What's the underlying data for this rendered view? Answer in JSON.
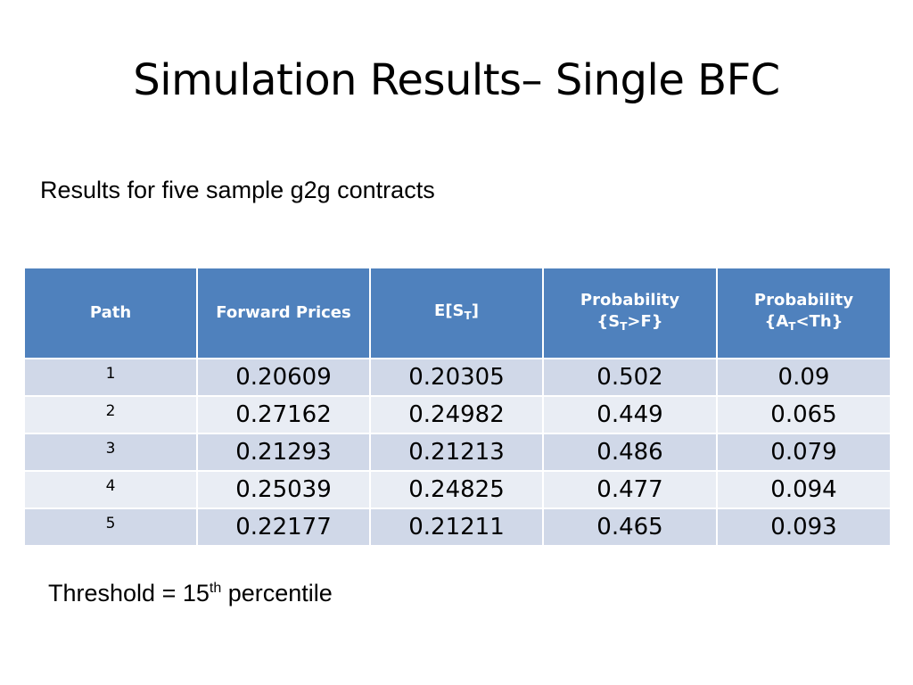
{
  "slide": {
    "title": "Simulation Results– Single BFC",
    "subtitle": "Results for five sample g2g contracts"
  },
  "table": {
    "headers": {
      "path": "Path",
      "forward_prices": "Forward Prices",
      "expectation": {
        "prefix": "E[S",
        "sub": "T",
        "suffix": "]"
      },
      "prob_s": {
        "line1": "Probability",
        "prefix": "{S",
        "sub": "T",
        "suffix": ">F}"
      },
      "prob_a": {
        "line1": "Probability",
        "prefix": "{A",
        "sub": "T",
        "suffix": "<Th}"
      }
    },
    "rows": [
      {
        "path": "1",
        "forward": "0.20609",
        "expectation": "0.20305",
        "prob_s": "0.502",
        "prob_a": "0.09"
      },
      {
        "path": "2",
        "forward": "0.27162",
        "expectation": "0.24982",
        "prob_s": "0.449",
        "prob_a": "0.065"
      },
      {
        "path": "3",
        "forward": "0.21293",
        "expectation": "0.21213",
        "prob_s": "0.486",
        "prob_a": "0.079"
      },
      {
        "path": "4",
        "forward": "0.25039",
        "expectation": "0.24825",
        "prob_s": "0.477",
        "prob_a": "0.094"
      },
      {
        "path": "5",
        "forward": "0.22177",
        "expectation": "0.21211",
        "prob_s": "0.465",
        "prob_a": "0.093"
      }
    ]
  },
  "footnote": {
    "prefix": "Threshold = 15",
    "sup": "th",
    "suffix": " percentile"
  },
  "colors": {
    "header_bg": "#4f81bd",
    "row_odd_bg": "#d0d8e8",
    "row_even_bg": "#e9edf4"
  }
}
